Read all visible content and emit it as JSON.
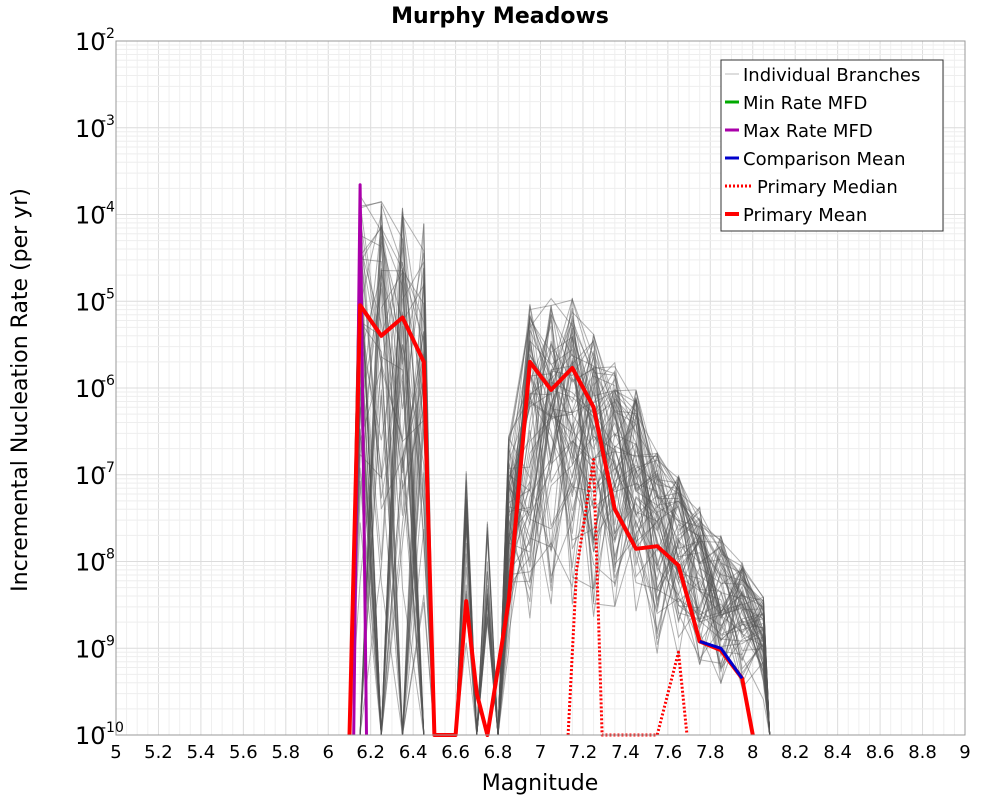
{
  "chart_data": {
    "type": "line",
    "title": "Murphy Meadows",
    "xlabel": "Magnitude",
    "ylabel": "Incremental Nucleation Rate (per yr)",
    "xlim": [
      5,
      9
    ],
    "ylim": [
      1e-10,
      0.01
    ],
    "y_scale": "log",
    "grid": true,
    "legend_position": "top-right",
    "x_ticks": [
      "5",
      "5.2",
      "5.4",
      "5.6",
      "5.8",
      "6",
      "6.2",
      "6.4",
      "6.6",
      "6.8",
      "7",
      "7.2",
      "7.4",
      "7.6",
      "7.8",
      "8",
      "8.2",
      "8.4",
      "8.6",
      "8.8",
      "9"
    ],
    "y_ticks": [
      {
        "value": 1e-10,
        "base": "10",
        "exp": "-10"
      },
      {
        "value": 1e-09,
        "base": "10",
        "exp": "-9"
      },
      {
        "value": 1e-08,
        "base": "10",
        "exp": "-8"
      },
      {
        "value": 1e-07,
        "base": "10",
        "exp": "-7"
      },
      {
        "value": 1e-06,
        "base": "10",
        "exp": "-6"
      },
      {
        "value": 1e-05,
        "base": "10",
        "exp": "-5"
      },
      {
        "value": 0.0001,
        "base": "10",
        "exp": "-4"
      },
      {
        "value": 0.001,
        "base": "10",
        "exp": "-3"
      },
      {
        "value": 0.01,
        "base": "10",
        "exp": "-2"
      }
    ],
    "series": [
      {
        "name": "Primary Mean",
        "color": "#ff0000",
        "style": "solid",
        "points": [
          [
            6.1,
            1e-10
          ],
          [
            6.15,
            9e-06
          ],
          [
            6.25,
            4e-06
          ],
          [
            6.35,
            6.5e-06
          ],
          [
            6.45,
            2e-06
          ],
          [
            6.5,
            1e-10
          ],
          [
            6.6,
            1e-10
          ],
          [
            6.65,
            3.5e-09
          ],
          [
            6.7,
            3e-10
          ],
          [
            6.75,
            1e-10
          ],
          [
            6.85,
            3.5e-09
          ],
          [
            6.95,
            2e-06
          ],
          [
            7.05,
            9.5e-07
          ],
          [
            7.15,
            1.7e-06
          ],
          [
            7.25,
            6e-07
          ],
          [
            7.35,
            4e-08
          ],
          [
            7.45,
            1.4e-08
          ],
          [
            7.55,
            1.5e-08
          ],
          [
            7.65,
            9e-09
          ],
          [
            7.75,
            1.2e-09
          ],
          [
            7.85,
            9.5e-10
          ],
          [
            7.95,
            4.5e-10
          ],
          [
            8.0,
            1e-10
          ]
        ]
      },
      {
        "name": "Primary Median",
        "color": "#ff0000",
        "style": "dotted",
        "points": [
          [
            7.13,
            1e-10
          ],
          [
            7.17,
            8e-09
          ],
          [
            7.25,
            1.5e-07
          ],
          [
            7.29,
            1e-10
          ],
          [
            7.55,
            1e-10
          ],
          [
            7.65,
            9e-10
          ],
          [
            7.69,
            1e-10
          ]
        ]
      },
      {
        "name": "Comparison Mean",
        "color": "#0000cc",
        "style": "solid",
        "points": [
          [
            7.75,
            1.2e-09
          ],
          [
            7.85,
            1e-09
          ],
          [
            7.95,
            4.5e-10
          ]
        ]
      },
      {
        "name": "Max Rate MFD",
        "color": "#aa00aa",
        "style": "solid",
        "points": [
          [
            6.12,
            1e-10
          ],
          [
            6.15,
            0.00022
          ],
          [
            6.18,
            1e-10
          ]
        ]
      },
      {
        "name": "Min Rate MFD",
        "color": "#00aa00",
        "style": "solid",
        "points": []
      }
    ],
    "individual_branches": {
      "name": "Individual Branches",
      "color": "#555555",
      "peaks": [
        {
          "x": 6.15,
          "y": 0.0002
        },
        {
          "x": 6.25,
          "y": 0.00015
        },
        {
          "x": 6.35,
          "y": 0.00015
        },
        {
          "x": 6.45,
          "y": 0.00012
        },
        {
          "x": 6.65,
          "y": 1.5e-07
        },
        {
          "x": 6.75,
          "y": 5e-08
        },
        {
          "x": 6.85,
          "y": 3e-07
        },
        {
          "x": 6.95,
          "y": 1.1e-05
        },
        {
          "x": 7.05,
          "y": 1.1e-05
        },
        {
          "x": 7.15,
          "y": 1.1e-05
        },
        {
          "x": 7.25,
          "y": 5e-06
        },
        {
          "x": 7.35,
          "y": 2e-06
        },
        {
          "x": 7.45,
          "y": 1e-06
        },
        {
          "x": 7.55,
          "y": 2e-07
        },
        {
          "x": 7.65,
          "y": 1e-07
        },
        {
          "x": 7.75,
          "y": 5e-08
        },
        {
          "x": 7.85,
          "y": 2e-08
        },
        {
          "x": 7.95,
          "y": 1e-08
        },
        {
          "x": 8.05,
          "y": 4e-09
        }
      ]
    },
    "legend": [
      {
        "label": "Individual Branches",
        "color": "#bbbbbb",
        "style": "solid",
        "width": 1
      },
      {
        "label": "Min Rate MFD",
        "color": "#00aa00",
        "style": "solid",
        "width": 3
      },
      {
        "label": "Max Rate MFD",
        "color": "#aa00aa",
        "style": "solid",
        "width": 3
      },
      {
        "label": "Comparison Mean",
        "color": "#0000cc",
        "style": "solid",
        "width": 3
      },
      {
        "label": "Primary Median",
        "color": "#ff0000",
        "style": "dotted",
        "width": 3
      },
      {
        "label": "Primary Mean",
        "color": "#ff0000",
        "style": "solid",
        "width": 4
      }
    ]
  }
}
